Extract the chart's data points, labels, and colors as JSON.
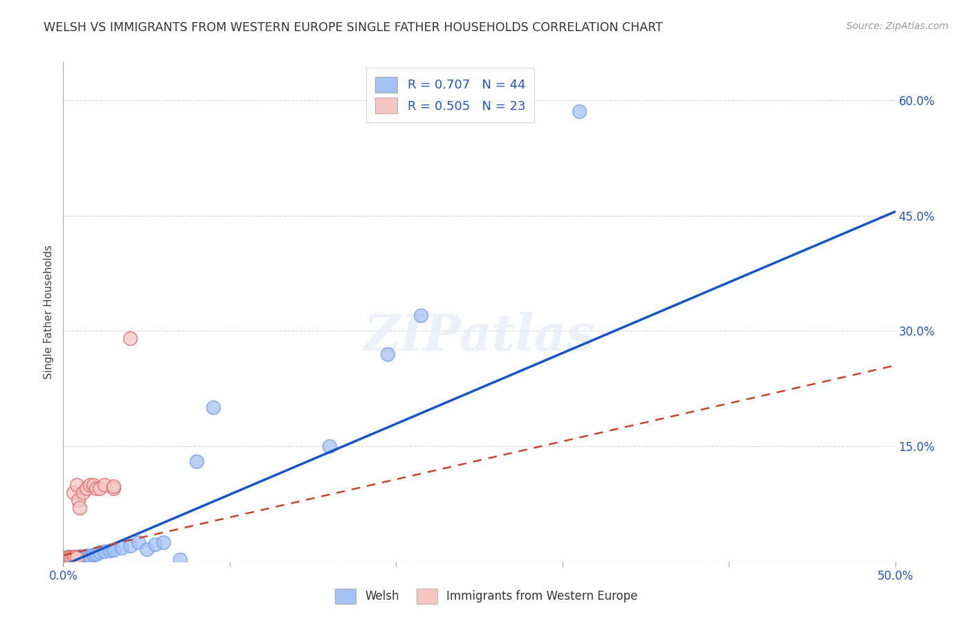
{
  "title": "WELSH VS IMMIGRANTS FROM WESTERN EUROPE SINGLE FATHER HOUSEHOLDS CORRELATION CHART",
  "source": "Source: ZipAtlas.com",
  "ylabel": "Single Father Households",
  "xlim": [
    0.0,
    0.5
  ],
  "ylim": [
    0.0,
    0.65
  ],
  "xticks": [
    0.0,
    0.1,
    0.2,
    0.3,
    0.4,
    0.5
  ],
  "xticklabels": [
    "0.0%",
    "",
    "",
    "",
    "",
    "50.0%"
  ],
  "yticks": [
    0.0,
    0.15,
    0.3,
    0.45,
    0.6
  ],
  "right_yticklabels": [
    "",
    "15.0%",
    "30.0%",
    "45.0%",
    "60.0%"
  ],
  "welsh_R": "0.707",
  "welsh_N": "44",
  "imm_R": "0.505",
  "imm_N": "23",
  "welsh_color": "#a4c2f4",
  "imm_color": "#f4c7c3",
  "welsh_edge_color": "#6d9eeb",
  "imm_edge_color": "#e06666",
  "welsh_line_color": "#1155cc",
  "imm_line_color": "#cc4125",
  "background_color": "#ffffff",
  "grid_color": "#cccccc",
  "welsh_line_x0": 0.0,
  "welsh_line_y0": -0.005,
  "welsh_line_x1": 0.5,
  "welsh_line_y1": 0.455,
  "imm_line_x0": 0.0,
  "imm_line_y0": 0.008,
  "imm_line_x1": 0.5,
  "imm_line_y1": 0.255,
  "welsh_scatter_x": [
    0.001,
    0.002,
    0.002,
    0.003,
    0.003,
    0.004,
    0.004,
    0.005,
    0.005,
    0.006,
    0.006,
    0.007,
    0.007,
    0.008,
    0.008,
    0.009,
    0.009,
    0.01,
    0.01,
    0.011,
    0.012,
    0.013,
    0.014,
    0.015,
    0.016,
    0.018,
    0.02,
    0.022,
    0.025,
    0.028,
    0.03,
    0.035,
    0.04,
    0.045,
    0.05,
    0.055,
    0.06,
    0.07,
    0.08,
    0.09,
    0.16,
    0.195,
    0.215,
    0.31
  ],
  "welsh_scatter_y": [
    0.002,
    0.003,
    0.005,
    0.002,
    0.006,
    0.003,
    0.005,
    0.003,
    0.006,
    0.003,
    0.005,
    0.003,
    0.005,
    0.004,
    0.006,
    0.003,
    0.006,
    0.004,
    0.007,
    0.005,
    0.006,
    0.007,
    0.006,
    0.008,
    0.006,
    0.009,
    0.01,
    0.012,
    0.013,
    0.014,
    0.015,
    0.018,
    0.02,
    0.025,
    0.016,
    0.022,
    0.025,
    0.002,
    0.13,
    0.2,
    0.15,
    0.27,
    0.32,
    0.585
  ],
  "imm_scatter_x": [
    0.001,
    0.002,
    0.003,
    0.003,
    0.004,
    0.005,
    0.006,
    0.006,
    0.007,
    0.008,
    0.008,
    0.009,
    0.01,
    0.012,
    0.014,
    0.016,
    0.018,
    0.02,
    0.022,
    0.025,
    0.03,
    0.03,
    0.04
  ],
  "imm_scatter_y": [
    0.003,
    0.004,
    0.004,
    0.006,
    0.005,
    0.004,
    0.005,
    0.09,
    0.006,
    0.005,
    0.1,
    0.08,
    0.07,
    0.09,
    0.095,
    0.1,
    0.1,
    0.095,
    0.095,
    0.1,
    0.095,
    0.098,
    0.29
  ]
}
